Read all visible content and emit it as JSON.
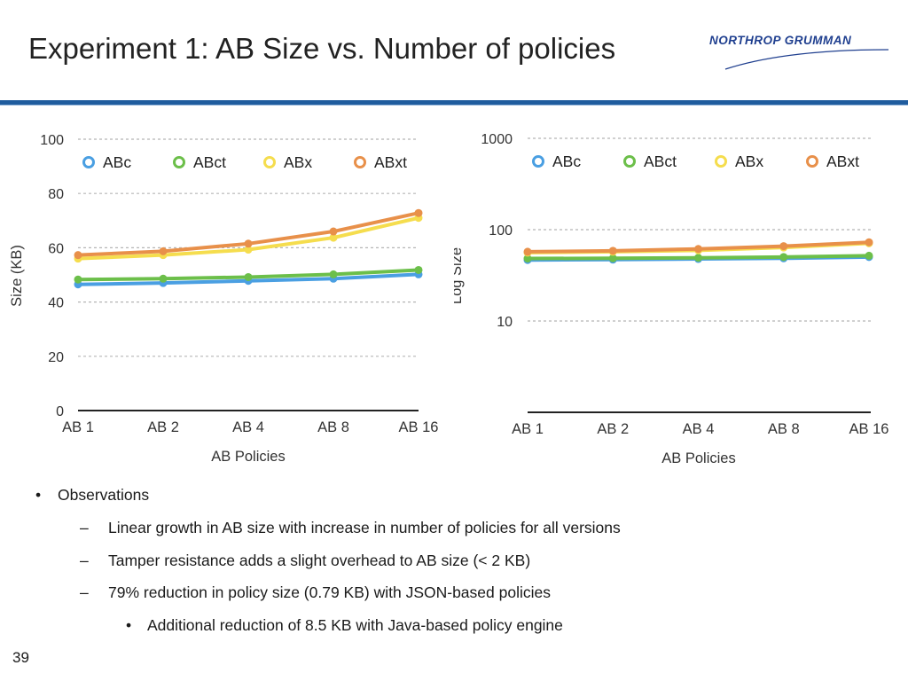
{
  "slide": {
    "title": "Experiment 1: AB Size vs. Number of policies",
    "logo_text": "NORTHROP GRUMMAN",
    "page_number": "39"
  },
  "colors": {
    "ABc": "#4a9fe2",
    "ABct": "#6cbf4a",
    "ABx": "#f5dd4e",
    "ABxt": "#e8904a",
    "accent_bar": "#1f5c9e",
    "logo": "#1f3f8f"
  },
  "chart_data": [
    {
      "type": "line",
      "categories": [
        "AB 1",
        "AB 2",
        "AB 4",
        "AB 8",
        "AB 16"
      ],
      "series": [
        {
          "name": "ABc",
          "values": [
            46.5,
            47.0,
            47.8,
            48.6,
            50.2
          ]
        },
        {
          "name": "ABct",
          "values": [
            48.3,
            48.6,
            49.2,
            50.2,
            51.8
          ]
        },
        {
          "name": "ABx",
          "values": [
            56.0,
            57.3,
            59.3,
            63.7,
            71.0
          ]
        },
        {
          "name": "ABxt",
          "values": [
            57.3,
            58.7,
            61.5,
            66.0,
            72.8
          ]
        }
      ],
      "xlabel": "AB Policies",
      "ylabel": "Size (KB)",
      "ylim": [
        0,
        100
      ],
      "yticks": [
        "0",
        "20",
        "40",
        "60",
        "80",
        "100"
      ],
      "yscale": "linear",
      "legend": "top",
      "grid": true
    },
    {
      "type": "line",
      "categories": [
        "AB 1",
        "AB 2",
        "AB 4",
        "AB 8",
        "AB 16"
      ],
      "series": [
        {
          "name": "ABc",
          "values": [
            46.5,
            47.0,
            47.8,
            48.6,
            50.2
          ]
        },
        {
          "name": "ABct",
          "values": [
            48.3,
            48.6,
            49.2,
            50.2,
            51.8
          ]
        },
        {
          "name": "ABx",
          "values": [
            56.0,
            57.3,
            59.3,
            63.7,
            71.0
          ]
        },
        {
          "name": "ABxt",
          "values": [
            57.3,
            58.7,
            61.5,
            66.0,
            72.8
          ]
        }
      ],
      "xlabel": "AB Policies",
      "ylabel": "Log Size",
      "ylim": [
        1,
        1000
      ],
      "yticks": [
        "1000",
        "100",
        "10"
      ],
      "yscale": "log",
      "legend": "top",
      "grid": true
    }
  ],
  "observations": {
    "heading": "Observations",
    "items": [
      "Linear growth in AB size with increase in number of policies for all versions",
      "Tamper resistance adds a slight overhead to AB size (< 2 KB)",
      "79% reduction in policy size (0.79 KB) with JSON-based policies"
    ],
    "subitem": "Additional reduction of 8.5 KB with Java-based policy engine",
    "bullet_symbol": "•",
    "dash_symbol": "–"
  }
}
